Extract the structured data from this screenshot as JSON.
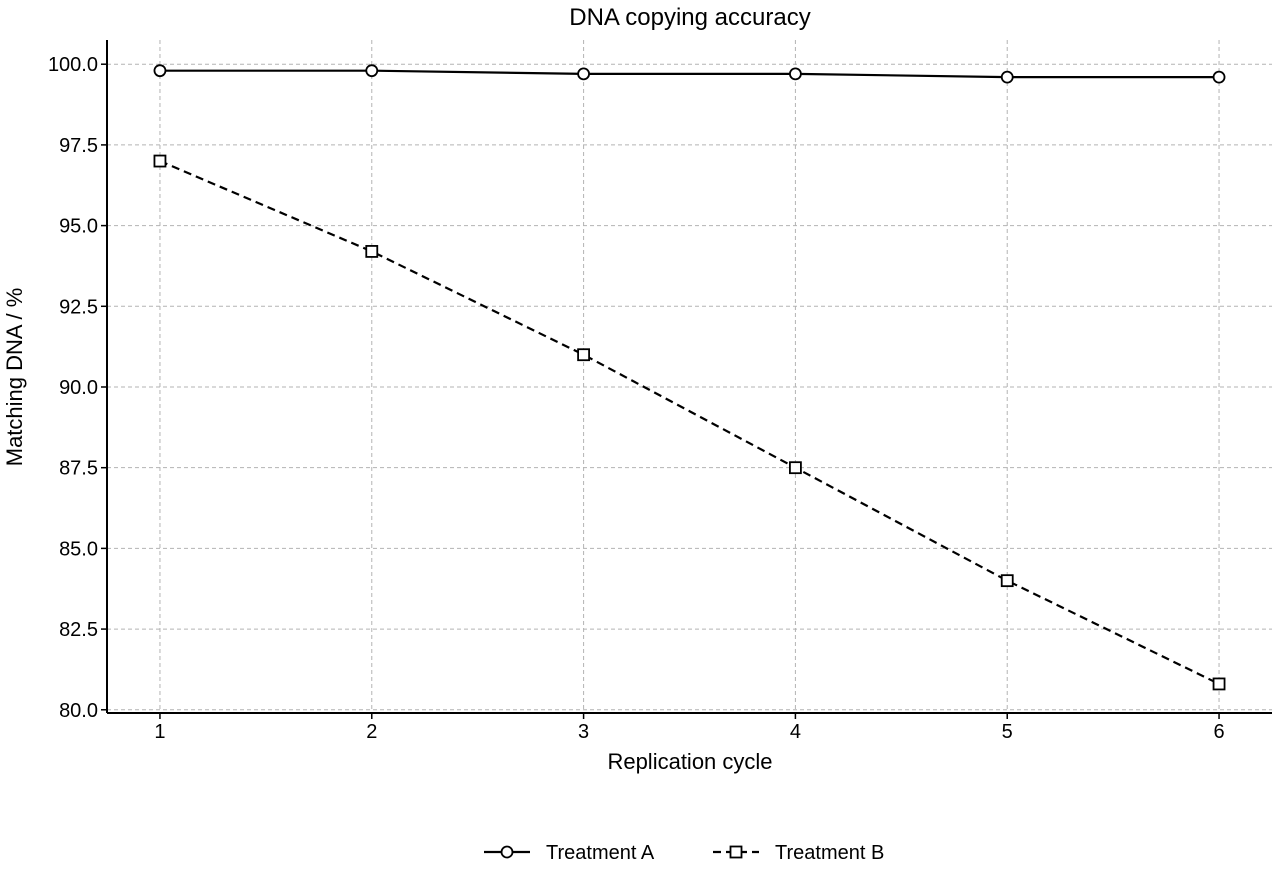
{
  "chart_data": {
    "type": "line",
    "title": "DNA copying accuracy",
    "xlabel": "Replication cycle",
    "ylabel": "Matching DNA / %",
    "x": [
      1,
      2,
      3,
      4,
      5,
      6
    ],
    "x_ticks": [
      "1",
      "2",
      "3",
      "4",
      "5",
      "6"
    ],
    "xlim": [
      0.75,
      6.25
    ],
    "ylim": [
      79.9,
      100.75
    ],
    "y_ticks": [
      80.0,
      82.5,
      85.0,
      87.5,
      90.0,
      92.5,
      95.0,
      97.5,
      100.0
    ],
    "y_tick_labels": [
      "80.0",
      "82.5",
      "85.0",
      "87.5",
      "90.0",
      "92.5",
      "95.0",
      "97.5",
      "100.0"
    ],
    "grid": true,
    "legend_position": "bottom-center",
    "series": [
      {
        "name": "Treatment A",
        "values": [
          99.8,
          99.8,
          99.7,
          99.7,
          99.6,
          99.6
        ],
        "marker": "circle",
        "line_style": "solid",
        "color": "#000000"
      },
      {
        "name": "Treatment B",
        "values": [
          97.0,
          94.2,
          91.0,
          87.5,
          84.0,
          80.8
        ],
        "marker": "square",
        "line_style": "dashed",
        "color": "#000000"
      }
    ]
  }
}
